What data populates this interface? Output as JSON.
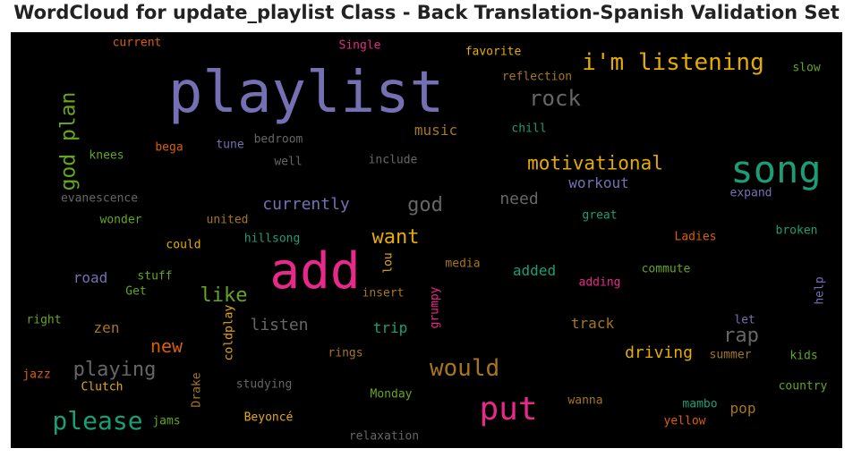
{
  "title": "WordCloud for update_playlist Class - Back Translation-Spanish Validation Set",
  "chart_data": {
    "type": "wordcloud",
    "title": "WordCloud for update_playlist Class - Back Translation-Spanish Validation Set",
    "background": "#000000",
    "words": [
      {
        "text": "playlist",
        "color": "#7570b3"
      },
      {
        "text": "add",
        "color": "#e7298a"
      },
      {
        "text": "song",
        "color": "#1b9e77"
      },
      {
        "text": "put",
        "color": "#e7298a"
      },
      {
        "text": "i'm listening",
        "color": "#e6ab02"
      },
      {
        "text": "please",
        "color": "#1b9e77"
      },
      {
        "text": "would",
        "color": "#a6761d"
      },
      {
        "text": "god plan",
        "color": "#66a61e"
      },
      {
        "text": "rock",
        "color": "#666666"
      },
      {
        "text": "motivational",
        "color": "#e6ab02"
      },
      {
        "text": "want",
        "color": "#e6ab02"
      },
      {
        "text": "playing",
        "color": "#666666"
      },
      {
        "text": "god",
        "color": "#666666"
      },
      {
        "text": "rap",
        "color": "#666666"
      },
      {
        "text": "like",
        "color": "#66a61e"
      },
      {
        "text": "new",
        "color": "#d95f02"
      },
      {
        "text": "currently",
        "color": "#7570b3"
      },
      {
        "text": "listen",
        "color": "#666666"
      },
      {
        "text": "need",
        "color": "#666666"
      },
      {
        "text": "driving",
        "color": "#e6ab02"
      },
      {
        "text": "workout",
        "color": "#7570b3"
      },
      {
        "text": "music",
        "color": "#a6761d"
      },
      {
        "text": "trip",
        "color": "#1b9e77"
      },
      {
        "text": "track",
        "color": "#a6761d"
      },
      {
        "text": "added",
        "color": "#1b9e77"
      },
      {
        "text": "road",
        "color": "#7570b3"
      },
      {
        "text": "zen",
        "color": "#a6761d"
      },
      {
        "text": "pop",
        "color": "#a6761d"
      },
      {
        "text": "current",
        "color": "#d95f02"
      },
      {
        "text": "Single",
        "color": "#e7298a"
      },
      {
        "text": "favorite",
        "color": "#e6ab02"
      },
      {
        "text": "reflection",
        "color": "#a6761d"
      },
      {
        "text": "slow",
        "color": "#66a61e"
      },
      {
        "text": "chill",
        "color": "#1b9e77"
      },
      {
        "text": "bedroom",
        "color": "#666666"
      },
      {
        "text": "tune",
        "color": "#7570b3"
      },
      {
        "text": "bega",
        "color": "#d95f02"
      },
      {
        "text": "knees",
        "color": "#66a61e"
      },
      {
        "text": "well",
        "color": "#666666"
      },
      {
        "text": "include",
        "color": "#666666"
      },
      {
        "text": "evanescence",
        "color": "#666666"
      },
      {
        "text": "expand",
        "color": "#7570b3"
      },
      {
        "text": "wonder",
        "color": "#66a61e"
      },
      {
        "text": "united",
        "color": "#a6761d"
      },
      {
        "text": "great",
        "color": "#1b9e77"
      },
      {
        "text": "broken",
        "color": "#1b9e77"
      },
      {
        "text": "Ladies",
        "color": "#d95f02"
      },
      {
        "text": "could",
        "color": "#e6ab02"
      },
      {
        "text": "hillsong",
        "color": "#1b9e77"
      },
      {
        "text": "lou",
        "color": "#e6ab02"
      },
      {
        "text": "media",
        "color": "#a6761d"
      },
      {
        "text": "commute",
        "color": "#66a61e"
      },
      {
        "text": "stuff",
        "color": "#66a61e"
      },
      {
        "text": "Get",
        "color": "#66a61e"
      },
      {
        "text": "insert",
        "color": "#a6761d"
      },
      {
        "text": "grumpy",
        "color": "#e7298a"
      },
      {
        "text": "adding",
        "color": "#e7298a"
      },
      {
        "text": "help",
        "color": "#7570b3"
      },
      {
        "text": "right",
        "color": "#66a61e"
      },
      {
        "text": "coldplay",
        "color": "#e6ab02"
      },
      {
        "text": "let",
        "color": "#7570b3"
      },
      {
        "text": "rings",
        "color": "#a6761d"
      },
      {
        "text": "summer",
        "color": "#a6761d"
      },
      {
        "text": "kids",
        "color": "#66a61e"
      },
      {
        "text": "jazz",
        "color": "#d95f02"
      },
      {
        "text": "Clutch",
        "color": "#e6ab02"
      },
      {
        "text": "Drake",
        "color": "#a6761d"
      },
      {
        "text": "studying",
        "color": "#666666"
      },
      {
        "text": "country",
        "color": "#66a61e"
      },
      {
        "text": "Monday",
        "color": "#66a61e"
      },
      {
        "text": "jams",
        "color": "#66a61e"
      },
      {
        "text": "Beyoncé",
        "color": "#e6ab02"
      },
      {
        "text": "wanna",
        "color": "#a6761d"
      },
      {
        "text": "mambo",
        "color": "#1b9e77"
      },
      {
        "text": "yellow",
        "color": "#d95f02"
      },
      {
        "text": "relaxation",
        "color": "#666666"
      }
    ]
  }
}
